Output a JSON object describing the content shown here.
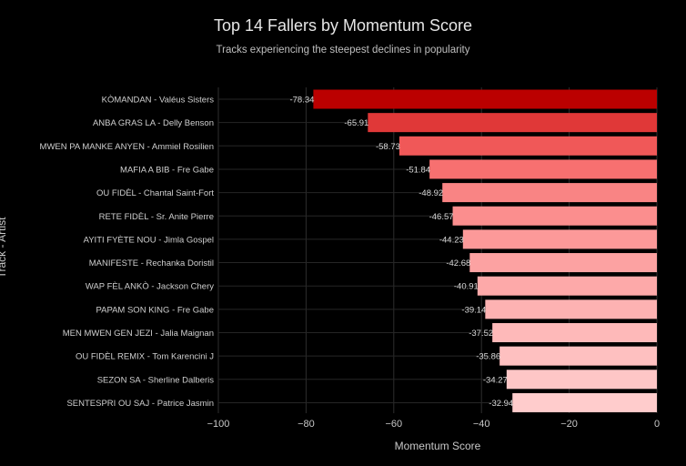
{
  "chart_data": {
    "type": "bar",
    "orientation": "horizontal",
    "title": "Top 14 Fallers by Momentum Score",
    "subtitle": "Tracks experiencing the steepest declines in popularity",
    "xlabel": "Momentum Score",
    "ylabel": "Track - Artist",
    "xlim": [
      -100,
      0
    ],
    "xticks": [
      -100,
      -80,
      -60,
      -40,
      -20,
      0
    ],
    "xtick_labels": [
      "−100",
      "−80",
      "−60",
      "−40",
      "−20",
      "0"
    ],
    "grid": true,
    "categories": [
      "KÒMANDAN - Valéus Sisters",
      "ANBA GRAS LA - Delly Benson",
      "MWEN PA MANKE ANYEN - Ammiel Rosilien",
      "MAFIA A BIB - Fre Gabe",
      "OU FIDÈL - Chantal Saint-Fort",
      "RETE FIDÈL - Sr. Anite Pierre",
      "AYITI FYÈTE NOU - Jimla Gospel",
      "MANIFESTE - Rechanka Doristil",
      "WAP FÈL ANKÒ - Jackson Chery",
      "PAPAM SON KING - Fre Gabe",
      "MEN MWEN GEN JEZI - Jalia Maignan",
      "OU FIDÈL REMIX - Tom Karencini J",
      "SEZON SA - Sherline Dalberis",
      "SENTESPRI OU SAJ - Patrice Jasmin"
    ],
    "values": [
      -78.34,
      -65.91,
      -58.73,
      -51.84,
      -48.92,
      -46.57,
      -44.23,
      -42.68,
      -40.91,
      -39.14,
      -37.52,
      -35.86,
      -34.27,
      -32.94
    ],
    "value_labels": [
      "-78.34",
      "-65.91",
      "-58.73",
      "-51.84",
      "-48.92",
      "-46.57",
      "-44.23",
      "-42.68",
      "-40.91",
      "-39.14",
      "-37.52",
      "-35.86",
      "-34.27",
      "-32.94"
    ],
    "colors": [
      "#bb0000",
      "#e03838",
      "#f05858",
      "#f77070",
      "#f98484",
      "#fb8e8e",
      "#fc9999",
      "#fca2a2",
      "#fda9a9",
      "#fdb2b2",
      "#feb9b9",
      "#fec0c0",
      "#fec6c6",
      "#ffcccc"
    ]
  }
}
